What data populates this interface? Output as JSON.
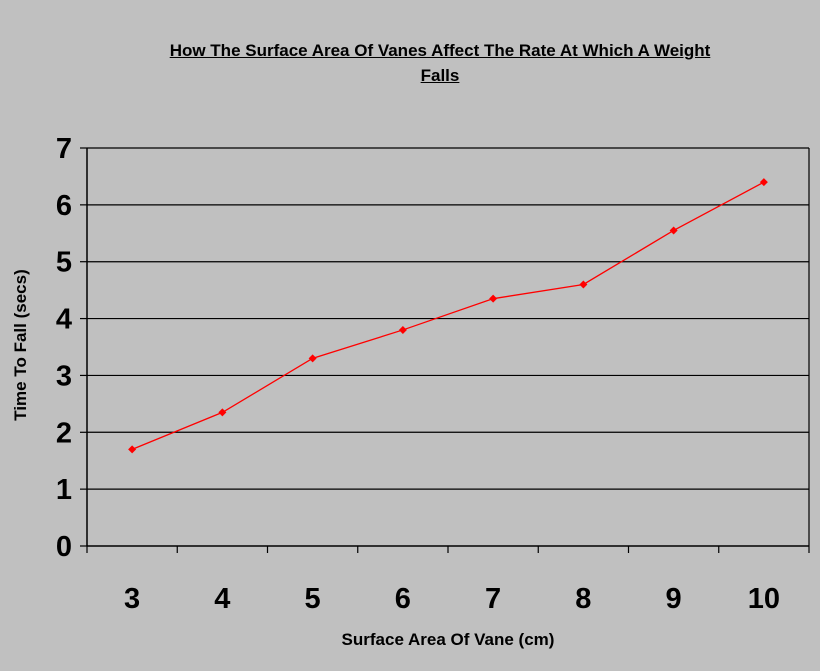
{
  "chart_data": {
    "type": "line",
    "title_lines": [
      "How The Surface Area Of Vanes Affect The Rate At Which A Weight",
      "Falls"
    ],
    "xlabel": "Surface Area Of Vane (cm)",
    "ylabel": "Time To Fall (secs)",
    "categories": [
      "3",
      "4",
      "5",
      "6",
      "7",
      "8",
      "9",
      "10"
    ],
    "values": [
      1.7,
      2.35,
      3.3,
      3.8,
      4.35,
      4.6,
      5.55,
      6.4
    ],
    "ylim": [
      0,
      7
    ],
    "yticks": [
      "0",
      "1",
      "2",
      "3",
      "4",
      "5",
      "6",
      "7"
    ],
    "grid": true,
    "colors": {
      "line": "#ff0000",
      "marker": "#ff0000",
      "grid": "#000000",
      "background": "#c0c0c0"
    }
  }
}
